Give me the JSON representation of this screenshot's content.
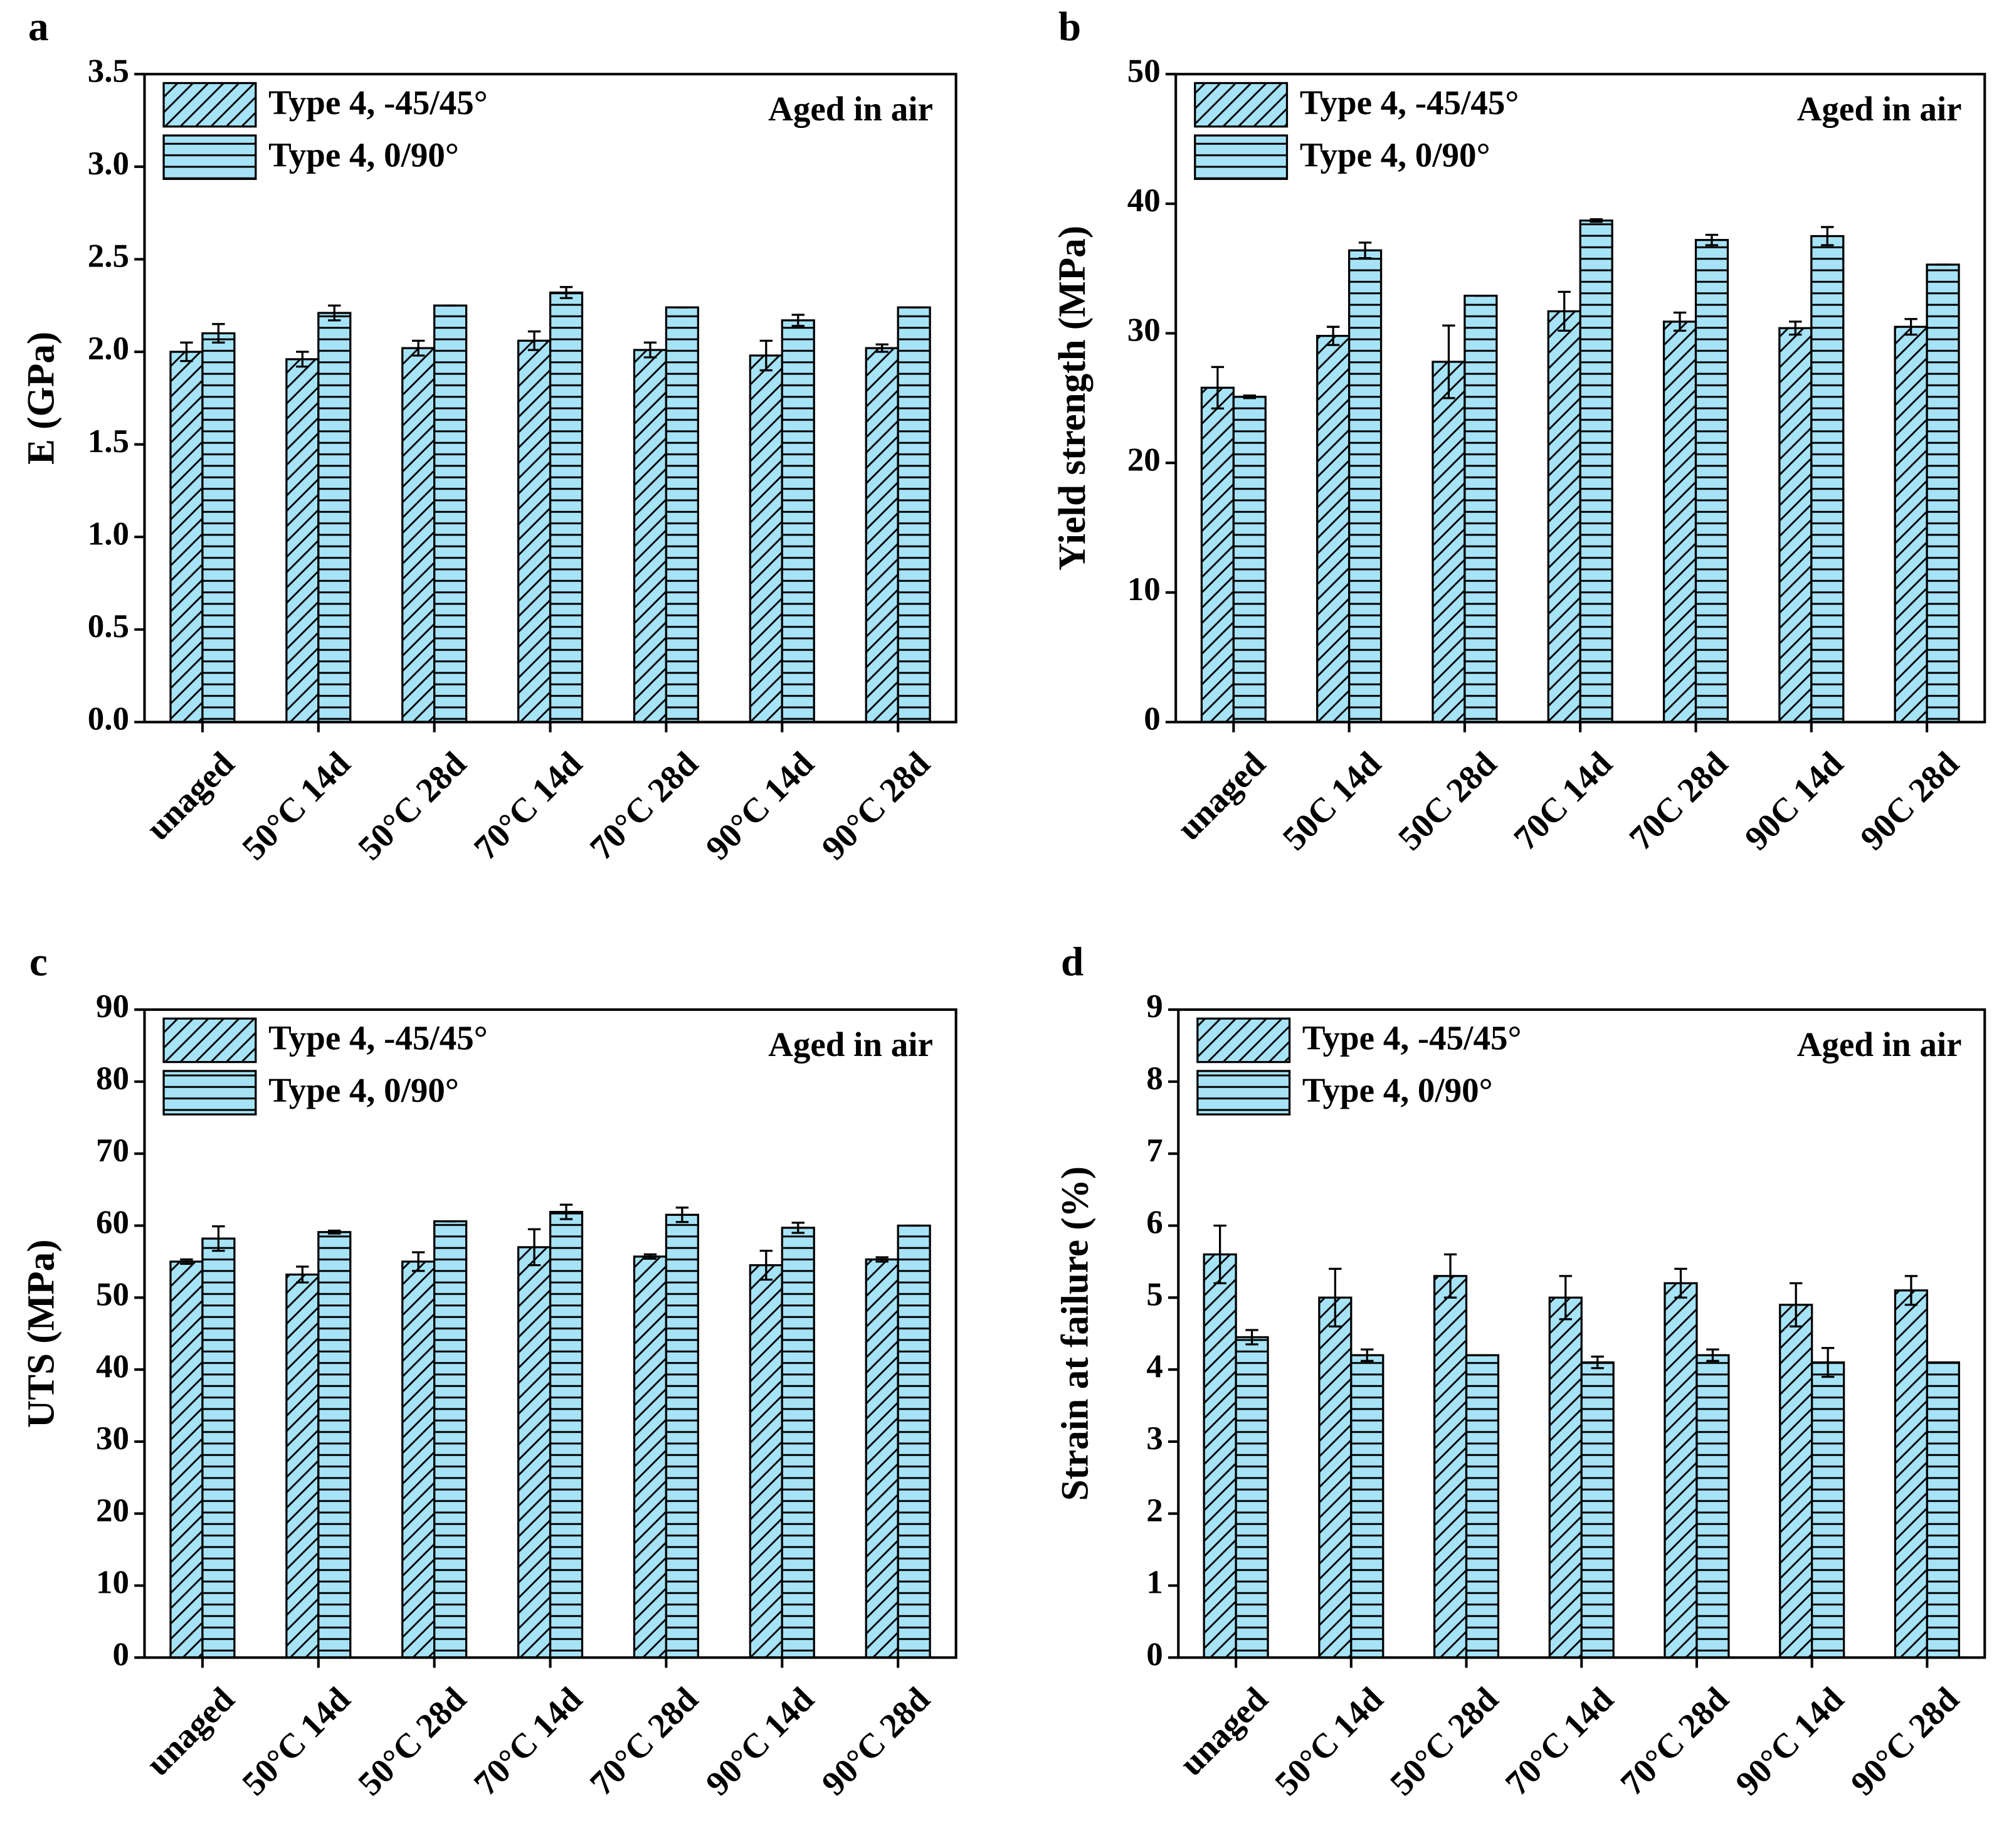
{
  "chart_data": [
    {
      "type": "bar",
      "panel": "a",
      "ylabel": "E (GPa)",
      "annotation": "Aged in air",
      "categories": [
        "unaged",
        "50°C 14d",
        "50°C 28d",
        "70°C 14d",
        "70°C 28d",
        "90°C 14d",
        "90°C 28d"
      ],
      "ylim": [
        0,
        3.5
      ],
      "yticks": [
        {
          "value": 0,
          "label": "0.0"
        },
        0.5,
        {
          "value": 1,
          "label": "1.0"
        },
        1.5,
        {
          "value": 2,
          "label": "2.0"
        },
        2.5,
        {
          "value": 3,
          "label": "3.0"
        },
        3.5
      ],
      "series": [
        {
          "name": "Type 4, -45/45°",
          "color": "#a6e3f6",
          "pattern": "diagonal",
          "values": [
            2.0,
            1.96,
            2.02,
            2.06,
            2.01,
            1.98,
            2.02
          ],
          "errors": [
            0.05,
            0.04,
            0.04,
            0.05,
            0.04,
            0.08,
            0.02
          ]
        },
        {
          "name": "Type 4, 0/90°",
          "color": "#a6e3f6",
          "pattern": "horizontal",
          "values": [
            2.1,
            2.21,
            2.25,
            2.32,
            2.24,
            2.17,
            2.24
          ],
          "errors": [
            0.05,
            0.04,
            0,
            0.03,
            0,
            0.03,
            0
          ]
        }
      ]
    },
    {
      "type": "bar",
      "panel": "b",
      "ylabel": "Yield strength (MPa)",
      "annotation": "Aged in air",
      "categories": [
        "unaged",
        "50C 14d",
        "50C 28d",
        "70C 14d",
        "70C 28d",
        "90C 14d",
        "90C 28d"
      ],
      "ylim": [
        0,
        50
      ],
      "yticks": [
        0,
        10,
        20,
        30,
        40,
        50
      ],
      "series": [
        {
          "name": "Type 4, -45/45°",
          "color": "#a6e3f6",
          "pattern": "diagonal",
          "values": [
            25.8,
            29.8,
            27.8,
            31.7,
            30.9,
            30.4,
            30.5
          ],
          "errors": [
            1.6,
            0.7,
            2.8,
            1.5,
            0.7,
            0.5,
            0.6
          ]
        },
        {
          "name": "Type 4, 0/90°",
          "color": "#a6e3f6",
          "pattern": "horizontal",
          "values": [
            25.1,
            36.4,
            32.9,
            38.7,
            37.2,
            37.5,
            35.3
          ],
          "errors": [
            0.1,
            0.6,
            0,
            0.1,
            0.4,
            0.7,
            0
          ]
        }
      ]
    },
    {
      "type": "bar",
      "panel": "c",
      "ylabel": "UTS (MPa)",
      "annotation": "Aged in air",
      "categories": [
        "unaged",
        "50°C 14d",
        "50°C 28d",
        "70°C 14d",
        "70°C 28d",
        "90°C 14d",
        "90°C 28d"
      ],
      "ylim": [
        0,
        90
      ],
      "yticks": [
        0,
        10,
        20,
        30,
        40,
        50,
        60,
        70,
        80,
        90
      ],
      "series": [
        {
          "name": "Type 4, -45/45°",
          "color": "#a6e3f6",
          "pattern": "diagonal",
          "values": [
            55.0,
            53.2,
            55.0,
            57.0,
            55.7,
            54.5,
            55.3
          ],
          "errors": [
            0.3,
            1.1,
            1.3,
            2.5,
            0.3,
            2.0,
            0.3
          ]
        },
        {
          "name": "Type 4, 0/90°",
          "color": "#a6e3f6",
          "pattern": "horizontal",
          "values": [
            58.2,
            59.1,
            60.6,
            61.9,
            61.5,
            59.7,
            60.0
          ],
          "errors": [
            1.7,
            0.2,
            0,
            1.0,
            1.0,
            0.7,
            0
          ]
        }
      ]
    },
    {
      "type": "bar",
      "panel": "d",
      "ylabel": "Strain at failure (%)",
      "annotation": "Aged in air",
      "categories": [
        "unaged",
        "50°C 14d",
        "50°C 28d",
        "70°C 14d",
        "70°C 28d",
        "90°C 14d",
        "90°C 28d"
      ],
      "ylim": [
        0,
        9
      ],
      "yticks": [
        0,
        1,
        2,
        3,
        4,
        5,
        6,
        7,
        8,
        9
      ],
      "series": [
        {
          "name": "Type 4, -45/45°",
          "color": "#a6e3f6",
          "pattern": "diagonal",
          "values": [
            5.6,
            5.0,
            5.3,
            5.0,
            5.2,
            4.9,
            5.1
          ],
          "errors": [
            0.4,
            0.4,
            0.3,
            0.3,
            0.2,
            0.3,
            0.2
          ]
        },
        {
          "name": "Type 4, 0/90°",
          "color": "#a6e3f6",
          "pattern": "horizontal",
          "values": [
            4.45,
            4.2,
            4.2,
            4.1,
            4.2,
            4.1,
            4.1
          ],
          "errors": [
            0.1,
            0.08,
            0,
            0.08,
            0.08,
            0.2,
            0
          ]
        }
      ]
    }
  ]
}
